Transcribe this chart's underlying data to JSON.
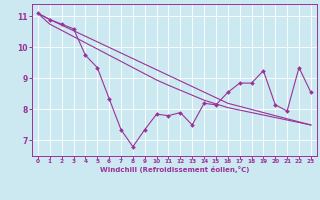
{
  "xlabel": "Windchill (Refroidissement éolien,°C)",
  "background_color": "#cce8f0",
  "line_color": "#993399",
  "grid_color": "#ffffff",
  "x_values": [
    0,
    1,
    2,
    3,
    4,
    5,
    6,
    7,
    8,
    9,
    10,
    11,
    12,
    13,
    14,
    15,
    16,
    17,
    18,
    19,
    20,
    21,
    22,
    23
  ],
  "smooth_line1": [
    11.1,
    10.9,
    10.72,
    10.54,
    10.36,
    10.18,
    10.0,
    9.82,
    9.64,
    9.46,
    9.28,
    9.1,
    8.92,
    8.74,
    8.56,
    8.38,
    8.2,
    8.1,
    8.0,
    7.9,
    7.8,
    7.7,
    7.6,
    7.5
  ],
  "smooth_line2": [
    11.1,
    10.75,
    10.55,
    10.35,
    10.15,
    9.95,
    9.75,
    9.55,
    9.35,
    9.15,
    8.95,
    8.78,
    8.62,
    8.46,
    8.3,
    8.18,
    8.06,
    7.98,
    7.9,
    7.82,
    7.74,
    7.66,
    7.58,
    7.5
  ],
  "data_line": [
    11.1,
    10.9,
    10.75,
    10.6,
    9.75,
    9.35,
    8.35,
    7.35,
    6.8,
    7.35,
    7.85,
    7.8,
    7.9,
    7.5,
    8.2,
    8.15,
    8.55,
    8.85,
    8.85,
    9.25,
    8.15,
    7.95,
    9.35,
    8.55
  ],
  "ylim": [
    6.5,
    11.4
  ],
  "xlim": [
    -0.5,
    23.5
  ],
  "yticks": [
    7,
    8,
    9,
    10,
    11
  ],
  "xticks": [
    0,
    1,
    2,
    3,
    4,
    5,
    6,
    7,
    8,
    9,
    10,
    11,
    12,
    13,
    14,
    15,
    16,
    17,
    18,
    19,
    20,
    21,
    22,
    23
  ]
}
